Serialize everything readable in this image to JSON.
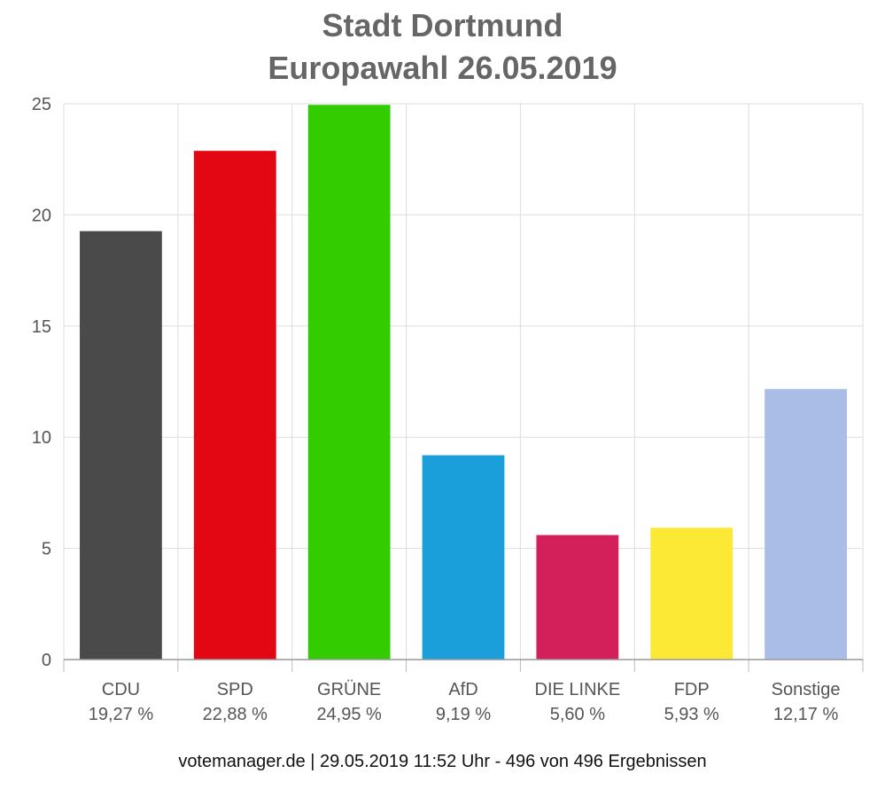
{
  "chart_data": {
    "type": "bar",
    "title": "Stadt Dortmund",
    "subtitle": "Europawahl 26.05.2019",
    "categories": [
      "CDU",
      "SPD",
      "GRÜNE",
      "AfD",
      "DIE LINKE",
      "FDP",
      "Sonstige"
    ],
    "values": [
      19.27,
      22.88,
      24.95,
      9.19,
      5.6,
      5.93,
      12.17
    ],
    "value_labels": [
      "19,27 %",
      "22,88 %",
      "24,95 %",
      "9,19 %",
      "5,60 %",
      "5,93 %",
      "12,17 %"
    ],
    "colors": [
      "#4a4a4a",
      "#e30613",
      "#33cc00",
      "#1a9fdb",
      "#d31f5a",
      "#fbe935",
      "#aabde6"
    ],
    "ylim": [
      0,
      25
    ],
    "yticks": [
      0,
      5,
      10,
      15,
      20,
      25
    ],
    "xlabel": "",
    "ylabel": "",
    "grid": true,
    "legend": "none"
  },
  "footer": "votemanager.de | 29.05.2019 11:52 Uhr - 496 von 496 Ergebnissen"
}
